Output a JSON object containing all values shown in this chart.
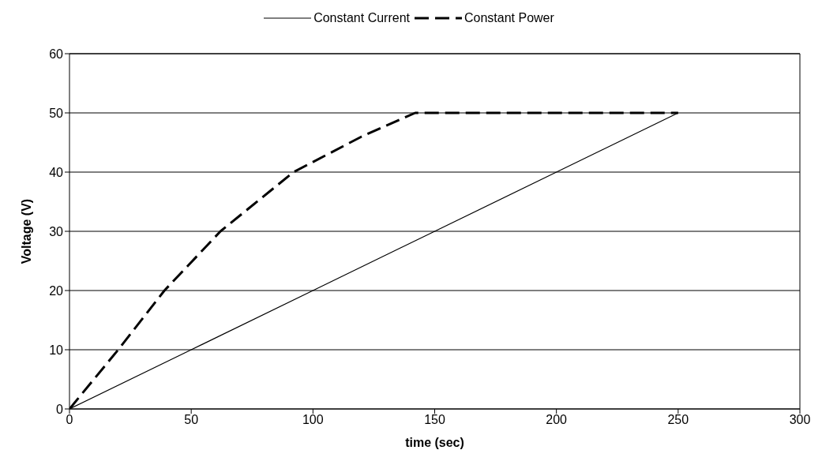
{
  "chart_data": {
    "type": "line",
    "xlabel": "time (sec)",
    "ylabel": "Voltage (V)",
    "xlim": [
      0,
      300
    ],
    "xticks": [
      0,
      50,
      100,
      150,
      200,
      250,
      300
    ],
    "ylim": [
      0,
      60
    ],
    "yticks": [
      0,
      10,
      20,
      30,
      40,
      50,
      60
    ],
    "grid": "y",
    "legend": "top",
    "marker": "none",
    "series": [
      {
        "name": "Constant Current",
        "color": "#000000",
        "line_style": "solid",
        "x": [
          0,
          50,
          100,
          150,
          200,
          250
        ],
        "values": [
          0,
          10,
          20,
          30,
          40,
          50
        ]
      },
      {
        "name": "Constant Power",
        "color": "#000000",
        "line_style": "dashed",
        "x": [
          0,
          20,
          39,
          62,
          92,
          120,
          142,
          250
        ],
        "values": [
          0,
          10,
          20,
          30,
          40,
          46,
          50,
          50
        ]
      }
    ]
  }
}
